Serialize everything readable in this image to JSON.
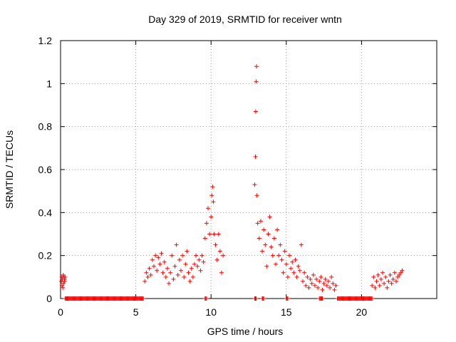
{
  "chart_data": {
    "type": "scatter",
    "title": "Day 329 of 2019, SRMTID for receiver wntn",
    "xlabel": "GPS time / hours",
    "ylabel": "SRMTID / TECUs",
    "xlim": [
      0,
      25
    ],
    "ylim": [
      0,
      1.2
    ],
    "xticks": [
      0,
      5,
      10,
      15,
      20
    ],
    "yticks": [
      0,
      0.2,
      0.4,
      0.6,
      0.8,
      1,
      1.2
    ],
    "ytick_labels": [
      "0",
      "0.2",
      "0.4",
      "0.6",
      "0.8",
      "1",
      "1.2"
    ],
    "grid": true,
    "marker": "+",
    "color": "#ff0000",
    "series": [
      {
        "name": "SRMTID",
        "points": [
          [
            0.05,
            0.08
          ],
          [
            0.08,
            0.1
          ],
          [
            0.1,
            0.06
          ],
          [
            0.12,
            0.09
          ],
          [
            0.15,
            0.05
          ],
          [
            0.18,
            0.11
          ],
          [
            0.2,
            0.07
          ],
          [
            0.22,
            0.1
          ],
          [
            0.25,
            0.08
          ],
          [
            0.28,
            0.09
          ],
          [
            0.3,
            0.1
          ],
          [
            5.6,
            0.08
          ],
          [
            5.7,
            0.12
          ],
          [
            5.8,
            0.1
          ],
          [
            5.9,
            0.14
          ],
          [
            6.0,
            0.11
          ],
          [
            6.1,
            0.18
          ],
          [
            6.2,
            0.15
          ],
          [
            6.3,
            0.2
          ],
          [
            6.4,
            0.13
          ],
          [
            6.5,
            0.19
          ],
          [
            6.6,
            0.16
          ],
          [
            6.7,
            0.21
          ],
          [
            6.8,
            0.12
          ],
          [
            6.9,
            0.17
          ],
          [
            7.0,
            0.1
          ],
          [
            7.1,
            0.14
          ],
          [
            7.2,
            0.07
          ],
          [
            7.3,
            0.12
          ],
          [
            7.4,
            0.2
          ],
          [
            7.5,
            0.09
          ],
          [
            7.6,
            0.15
          ],
          [
            7.7,
            0.25
          ],
          [
            7.8,
            0.11
          ],
          [
            7.9,
            0.18
          ],
          [
            8.0,
            0.13
          ],
          [
            8.1,
            0.2
          ],
          [
            8.2,
            0.1
          ],
          [
            8.3,
            0.16
          ],
          [
            8.4,
            0.22
          ],
          [
            8.5,
            0.12
          ],
          [
            8.6,
            0.08
          ],
          [
            8.7,
            0.14
          ],
          [
            8.8,
            0.1
          ],
          [
            8.9,
            0.16
          ],
          [
            9.0,
            0.2
          ],
          [
            9.1,
            0.15
          ],
          [
            9.2,
            0.18
          ],
          [
            9.3,
            0.13
          ],
          [
            9.4,
            0.2
          ],
          [
            9.5,
            0.17
          ],
          [
            9.6,
            0.28
          ],
          [
            9.7,
            0.35
          ],
          [
            9.8,
            0.42
          ],
          [
            9.9,
            0.3
          ],
          [
            10.0,
            0.38
          ],
          [
            10.05,
            0.48
          ],
          [
            10.1,
            0.52
          ],
          [
            10.15,
            0.45
          ],
          [
            10.2,
            0.3
          ],
          [
            10.3,
            0.25
          ],
          [
            10.4,
            0.18
          ],
          [
            10.5,
            0.3
          ],
          [
            10.6,
            0.22
          ],
          [
            10.7,
            0.12
          ],
          [
            10.8,
            0.2
          ],
          [
            12.9,
            0.53
          ],
          [
            12.95,
            0.66
          ],
          [
            12.97,
            0.87
          ],
          [
            13.0,
            1.01
          ],
          [
            13.02,
            1.08
          ],
          [
            13.05,
            0.48
          ],
          [
            13.1,
            0.35
          ],
          [
            13.2,
            0.28
          ],
          [
            13.3,
            0.36
          ],
          [
            13.4,
            0.22
          ],
          [
            13.5,
            0.32
          ],
          [
            13.6,
            0.25
          ],
          [
            13.7,
            0.15
          ],
          [
            13.8,
            0.3
          ],
          [
            13.9,
            0.38
          ],
          [
            14.0,
            0.24
          ],
          [
            14.1,
            0.2
          ],
          [
            14.2,
            0.28
          ],
          [
            14.3,
            0.16
          ],
          [
            14.4,
            0.32
          ],
          [
            14.5,
            0.2
          ],
          [
            14.6,
            0.25
          ],
          [
            14.7,
            0.18
          ],
          [
            14.8,
            0.12
          ],
          [
            14.9,
            0.22
          ],
          [
            15.0,
            0.16
          ],
          [
            15.1,
            0.1
          ],
          [
            15.2,
            0.2
          ],
          [
            15.3,
            0.14
          ],
          [
            15.4,
            0.17
          ],
          [
            15.5,
            0.12
          ],
          [
            15.6,
            0.18
          ],
          [
            15.7,
            0.1
          ],
          [
            15.8,
            0.15
          ],
          [
            15.9,
            0.13
          ],
          [
            16.0,
            0.25
          ],
          [
            16.1,
            0.08
          ],
          [
            16.2,
            0.12
          ],
          [
            16.3,
            0.06
          ],
          [
            16.4,
            0.1
          ],
          [
            16.5,
            0.05
          ],
          [
            16.6,
            0.09
          ],
          [
            16.7,
            0.07
          ],
          [
            16.8,
            0.11
          ],
          [
            16.9,
            0.06
          ],
          [
            17.0,
            0.09
          ],
          [
            17.1,
            0.05
          ],
          [
            17.2,
            0.08
          ],
          [
            17.3,
            0.1
          ],
          [
            17.4,
            0.04
          ],
          [
            17.5,
            0.07
          ],
          [
            17.6,
            0.09
          ],
          [
            17.7,
            0.06
          ],
          [
            17.8,
            0.08
          ],
          [
            17.9,
            0.05
          ],
          [
            18.0,
            0.1
          ],
          [
            18.1,
            0.07
          ],
          [
            18.2,
            0.04
          ],
          [
            18.3,
            0.06
          ],
          [
            20.7,
            0.06
          ],
          [
            20.8,
            0.1
          ],
          [
            20.9,
            0.05
          ],
          [
            21.0,
            0.08
          ],
          [
            21.1,
            0.11
          ],
          [
            21.2,
            0.06
          ],
          [
            21.3,
            0.09
          ],
          [
            21.4,
            0.12
          ],
          [
            21.5,
            0.07
          ],
          [
            21.6,
            0.1
          ],
          [
            21.7,
            0.05
          ],
          [
            21.8,
            0.08
          ],
          [
            21.9,
            0.11
          ],
          [
            22.0,
            0.07
          ],
          [
            22.1,
            0.09
          ],
          [
            22.2,
            0.12
          ],
          [
            22.3,
            0.08
          ],
          [
            22.4,
            0.1
          ],
          [
            22.5,
            0.11
          ],
          [
            22.6,
            0.12
          ],
          [
            22.7,
            0.13
          ]
        ],
        "zero_ranges": [
          [
            0.3,
            5.5
          ],
          [
            9.6,
            9.7
          ],
          [
            12.9,
            13.0
          ],
          [
            13.4,
            13.5
          ],
          [
            15.0,
            15.1
          ],
          [
            17.2,
            17.4
          ],
          [
            18.4,
            20.7
          ]
        ]
      }
    ]
  }
}
